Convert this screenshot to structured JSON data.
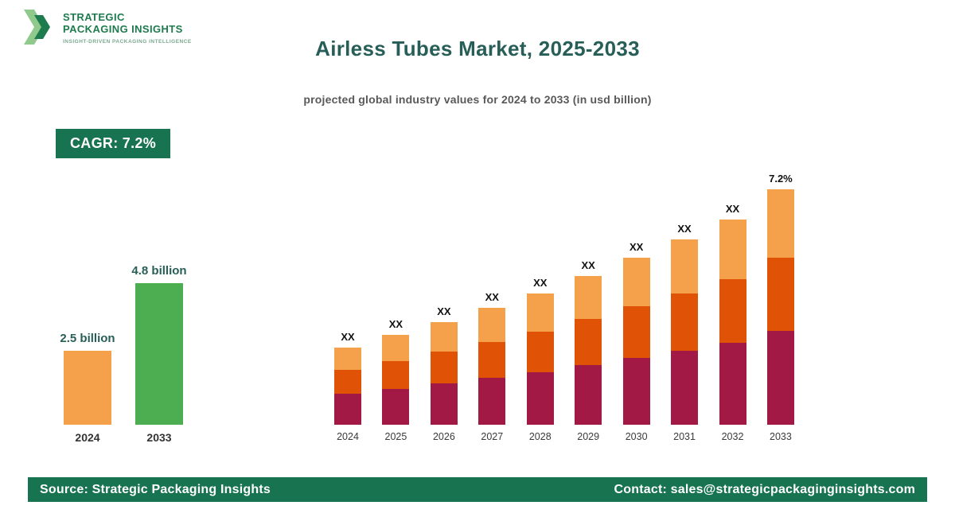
{
  "brand": {
    "name_line1": "STRATEGIC",
    "name_line2": "PACKAGING INSIGHTS",
    "tagline": "INSIGHT-DRIVEN PACKAGING INTELLIGENCE"
  },
  "header": {
    "title": "Airless Tubes Market, 2025-2033",
    "subtitle": "projected global industry values for 2024 to 2033 (in usd billion)"
  },
  "cagr_badge": {
    "label": "CAGR: 7.2%"
  },
  "colors": {
    "accent_green": "#177350",
    "title_teal": "#275e57",
    "mini_bar_2024": "#f5a04a",
    "mini_bar_2033": "#4cae50",
    "segment_bottom": "#a31945",
    "segment_middle": "#e05206",
    "segment_top": "#f5a04a"
  },
  "mini_chart": {
    "type": "bar",
    "bars": [
      {
        "year": "2024",
        "label": "2.5 billion",
        "value_usd_billion": 2.5,
        "color": "#f5a04a"
      },
      {
        "year": "2033",
        "label": "4.8 billion",
        "value_usd_billion": 4.8,
        "color": "#4cae50"
      }
    ]
  },
  "chart_data": {
    "type": "bar",
    "stacked": true,
    "title": "Airless Tubes Market, 2025-2033",
    "xlabel": "",
    "ylabel": "usd billion",
    "categories": [
      "2024",
      "2025",
      "2026",
      "2027",
      "2028",
      "2029",
      "2030",
      "2031",
      "2032",
      "2033"
    ],
    "bar_labels": [
      "XX",
      "XX",
      "XX",
      "XX",
      "XX",
      "XX",
      "XX",
      "XX",
      "XX",
      "7.2%"
    ],
    "totals_usd_billion_est": [
      2.5,
      2.68,
      2.87,
      3.08,
      3.3,
      3.54,
      3.8,
      4.07,
      4.36,
      4.8
    ],
    "series": [
      {
        "name": "segment-bottom",
        "color": "#a31945",
        "values": [
          1.0,
          1.07,
          1.15,
          1.23,
          1.32,
          1.42,
          1.52,
          1.63,
          1.74,
          1.92
        ]
      },
      {
        "name": "segment-middle",
        "color": "#e05206",
        "values": [
          0.78,
          0.83,
          0.89,
          0.95,
          1.02,
          1.1,
          1.18,
          1.26,
          1.35,
          1.49
        ]
      },
      {
        "name": "segment-top",
        "color": "#f5a04a",
        "values": [
          0.72,
          0.78,
          0.83,
          0.9,
          0.96,
          1.02,
          1.1,
          1.18,
          1.27,
          1.39
        ]
      }
    ]
  },
  "footer": {
    "source": "Source: Strategic Packaging Insights",
    "contact": "Contact: sales@strategicpackaginginsights.com"
  }
}
